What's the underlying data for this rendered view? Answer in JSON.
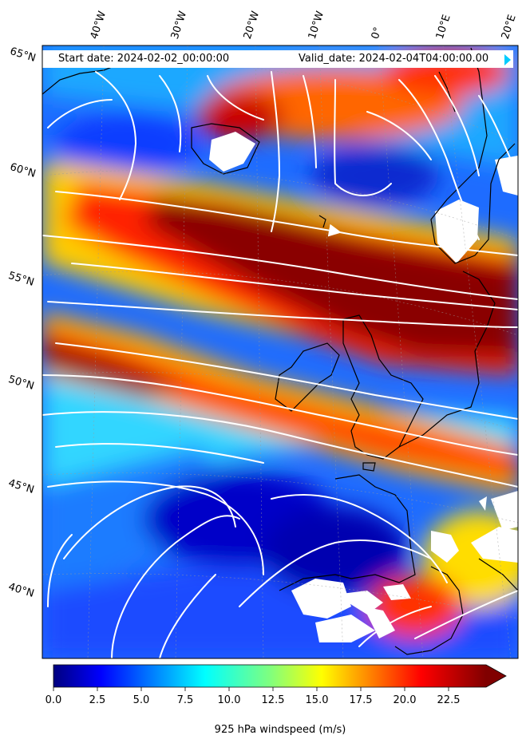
{
  "header": {
    "start_date": "Start date: 2024-02-02_00:00:00",
    "valid_date": "Valid_date: 2024-02-04T04:00:00.00"
  },
  "latitude_labels": [
    "65°N",
    "60°N",
    "55°N",
    "50°N",
    "45°N",
    "40°N"
  ],
  "longitude_labels": [
    "40°W",
    "30°W",
    "20°W",
    "10°W",
    "0°",
    "10°E",
    "20°E"
  ],
  "colorbar": {
    "label": "925 hPa windspeed (m/s)",
    "ticks": [
      "0.0",
      "2.5",
      "5.0",
      "7.5",
      "10.0",
      "12.5",
      "15.0",
      "17.5",
      "20.0",
      "22.5"
    ],
    "range": [
      0,
      25
    ],
    "extend": "max",
    "colormap": "jet"
  },
  "colors": {
    "strong_wind": "#800000",
    "weak_wind": "#0000c8",
    "streamlines": "#ffffff",
    "coastline": "#000000"
  }
}
